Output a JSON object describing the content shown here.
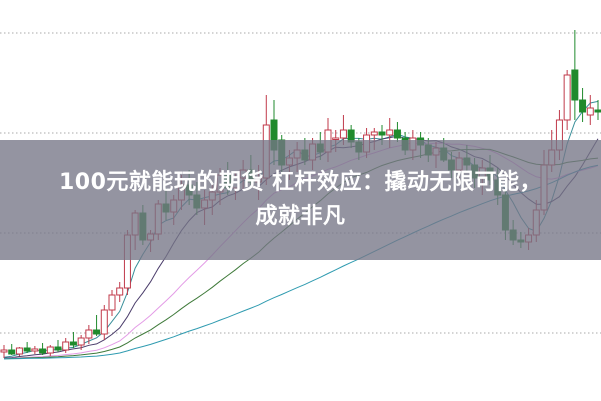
{
  "headline": {
    "line1": "100元就能玩的期货 杠杆效应：撬动无限可能，",
    "line2": "成就非凡"
  },
  "chart_data": {
    "type": "candlestick",
    "grid": true,
    "up_color": "#c0394a",
    "down_color": "#1f8a2c",
    "ma_colors": [
      "#3a8f9a",
      "#4b3d6b",
      "#e39be6",
      "#3f7a3a",
      "#2f9bb0"
    ],
    "ma_periods": [
      5,
      10,
      20,
      30,
      60
    ],
    "candles": [
      [
        48,
        55,
        42,
        50
      ],
      [
        50,
        56,
        45,
        46
      ],
      [
        46,
        53,
        44,
        52
      ],
      [
        52,
        58,
        47,
        49
      ],
      [
        49,
        54,
        46,
        51
      ],
      [
        51,
        57,
        45,
        47
      ],
      [
        47,
        55,
        44,
        53
      ],
      [
        53,
        60,
        48,
        50
      ],
      [
        50,
        62,
        47,
        58
      ],
      [
        58,
        68,
        52,
        55
      ],
      [
        55,
        65,
        50,
        62
      ],
      [
        62,
        75,
        56,
        70
      ],
      [
        70,
        85,
        64,
        66
      ],
      [
        66,
        95,
        60,
        90
      ],
      [
        90,
        110,
        84,
        105
      ],
      [
        105,
        118,
        98,
        112
      ],
      [
        112,
        170,
        105,
        165
      ],
      [
        165,
        190,
        150,
        187
      ],
      [
        187,
        195,
        155,
        160
      ],
      [
        160,
        170,
        148,
        166
      ],
      [
        166,
        200,
        160,
        196
      ],
      [
        196,
        212,
        180,
        188
      ],
      [
        188,
        205,
        175,
        200
      ],
      [
        200,
        225,
        190,
        215
      ],
      [
        215,
        230,
        195,
        205
      ],
      [
        205,
        218,
        185,
        192
      ],
      [
        192,
        210,
        175,
        200
      ],
      [
        200,
        215,
        185,
        208
      ],
      [
        208,
        232,
        195,
        225
      ],
      [
        225,
        238,
        205,
        212
      ],
      [
        212,
        228,
        200,
        222
      ],
      [
        222,
        240,
        210,
        230
      ],
      [
        230,
        245,
        215,
        218
      ],
      [
        218,
        235,
        200,
        222
      ],
      [
        222,
        305,
        215,
        275
      ],
      [
        280,
        300,
        235,
        250
      ],
      [
        260,
        265,
        225,
        235
      ],
      [
        235,
        250,
        220,
        242
      ],
      [
        242,
        258,
        228,
        250
      ],
      [
        250,
        262,
        235,
        240
      ],
      [
        240,
        262,
        230,
        256
      ],
      [
        256,
        268,
        240,
        248
      ],
      [
        248,
        282,
        238,
        270
      ],
      [
        262,
        270,
        248,
        262
      ],
      [
        262,
        285,
        255,
        270
      ],
      [
        270,
        275,
        252,
        258
      ],
      [
        258,
        262,
        240,
        248
      ],
      [
        248,
        272,
        242,
        265
      ],
      [
        265,
        272,
        250,
        268
      ],
      [
        268,
        275,
        255,
        265
      ],
      [
        265,
        282,
        252,
        270
      ],
      [
        270,
        278,
        258,
        262
      ],
      [
        262,
        268,
        245,
        250
      ],
      [
        250,
        270,
        240,
        262
      ],
      [
        262,
        268,
        242,
        255
      ],
      [
        255,
        262,
        238,
        245
      ],
      [
        245,
        258,
        232,
        252
      ],
      [
        252,
        262,
        238,
        240
      ],
      [
        240,
        248,
        222,
        230
      ],
      [
        230,
        248,
        220,
        242
      ],
      [
        242,
        255,
        228,
        235
      ],
      [
        235,
        242,
        212,
        222
      ],
      [
        222,
        240,
        205,
        232
      ],
      [
        232,
        245,
        215,
        220
      ],
      [
        220,
        232,
        195,
        205
      ],
      [
        205,
        210,
        160,
        170
      ],
      [
        170,
        180,
        155,
        160
      ],
      [
        160,
        168,
        152,
        158
      ],
      [
        158,
        172,
        150,
        165
      ],
      [
        165,
        200,
        158,
        190
      ],
      [
        190,
        250,
        185,
        235
      ],
      [
        235,
        270,
        228,
        250
      ],
      [
        250,
        290,
        240,
        280
      ],
      [
        280,
        330,
        270,
        325
      ],
      [
        330,
        370,
        280,
        300
      ],
      [
        300,
        312,
        278,
        288
      ],
      [
        285,
        305,
        275,
        292
      ],
      [
        290,
        300,
        280,
        288
      ]
    ]
  }
}
